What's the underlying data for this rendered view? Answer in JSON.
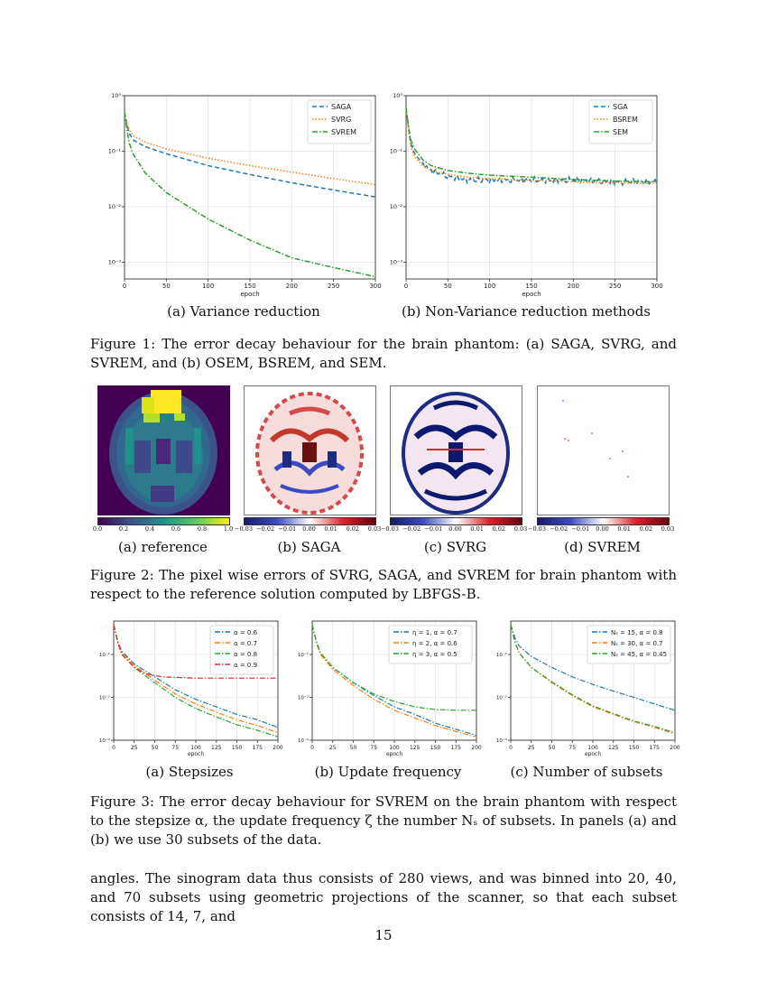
{
  "figure1": {
    "subcaption_a": "(a) Variance reduction",
    "subcaption_b": "(b) Non-Variance reduction methods",
    "caption": "Figure 1: The error decay behaviour for the brain phantom: (a) SAGA, SVRG, and SVREM, and (b) OSEM, BSREM, and SEM."
  },
  "figure2": {
    "subcaption_a": "(a) reference",
    "subcaption_b": "(b) SAGA",
    "subcaption_c": "(c) SVRG",
    "subcaption_d": "(d) SVREM",
    "colorbar_ref_ticks": [
      "0.0",
      "0.2",
      "0.4",
      "0.6",
      "0.8",
      "1.0"
    ],
    "colorbar_err_ticks": [
      "−0.03",
      "−0.02",
      "−0.01",
      "0.00",
      "0.01",
      "0.02",
      "0.03"
    ],
    "caption": "Figure 2: The pixel wise errors of SVRG, SAGA, and SVREM for brain phantom with respect to the reference solution computed by LBFGS-B."
  },
  "figure3": {
    "subcaption_a": "(a) Stepsizes",
    "subcaption_b": "(b) Update frequency",
    "subcaption_c": "(c) Number of subsets",
    "caption": "Figure 3: The error decay behaviour for SVREM on the brain phantom with respect to the stepsize α, the update frequency ζ the number Nₛ of subsets. In panels (a) and (b) we use 30 subsets of the data."
  },
  "body_text": "angles. The sinogram data thus consists of 280 views, and was binned into 20, 40, and 70 subsets using geometric projections of the scanner, so that each subset consists of 14, 7, and",
  "page_number": "15",
  "colors": {
    "blue": "#1f77b4",
    "orange": "#ff7f0e",
    "green": "#2ca02c",
    "red": "#d62728"
  },
  "chart_data": [
    {
      "id": "fig1a",
      "type": "line",
      "ylog": true,
      "xlabel": "epoch",
      "ylabel": "",
      "xlim": [
        0,
        300
      ],
      "ylim": [
        0.0005,
        1.0
      ],
      "xticks": [
        "0",
        "50",
        "100",
        "150",
        "200",
        "250",
        "300"
      ],
      "yticks": [
        "10⁰",
        "10⁻¹",
        "10⁻²",
        "10⁻³"
      ],
      "grid": true,
      "legend_position": "upper right",
      "series": [
        {
          "name": "SAGA",
          "style": "dashed",
          "color": "#1f77b4",
          "x": [
            0,
            5,
            10,
            25,
            50,
            100,
            150,
            200,
            250,
            300
          ],
          "y": [
            0.5,
            0.22,
            0.16,
            0.12,
            0.09,
            0.055,
            0.038,
            0.027,
            0.02,
            0.015
          ]
        },
        {
          "name": "SVRG",
          "style": "dotted",
          "color": "#ff7f0e",
          "x": [
            0,
            5,
            10,
            25,
            50,
            100,
            150,
            200,
            250,
            300
          ],
          "y": [
            0.5,
            0.25,
            0.19,
            0.145,
            0.11,
            0.075,
            0.055,
            0.042,
            0.032,
            0.025
          ]
        },
        {
          "name": "SVREM",
          "style": "dashdot",
          "color": "#2ca02c",
          "x": [
            0,
            5,
            10,
            25,
            50,
            100,
            150,
            200,
            250,
            300
          ],
          "y": [
            0.5,
            0.15,
            0.09,
            0.04,
            0.018,
            0.006,
            0.0025,
            0.0012,
            0.0008,
            0.00055
          ]
        }
      ]
    },
    {
      "id": "fig1b",
      "type": "line",
      "ylog": true,
      "xlabel": "epoch",
      "ylabel": "",
      "xlim": [
        0,
        300
      ],
      "ylim": [
        0.0005,
        1.0
      ],
      "xticks": [
        "0",
        "50",
        "100",
        "150",
        "200",
        "250",
        "300"
      ],
      "yticks": [
        "10⁰",
        "10⁻¹",
        "10⁻²",
        "10⁻³"
      ],
      "grid": true,
      "legend_position": "upper right",
      "series": [
        {
          "name": "SGA",
          "style": "dashed",
          "color": "#1f77b4",
          "noisy": true,
          "x": [
            0,
            5,
            10,
            20,
            30,
            50,
            75,
            100,
            150,
            200,
            250,
            300
          ],
          "y": [
            0.6,
            0.15,
            0.09,
            0.06,
            0.045,
            0.035,
            0.03,
            0.03,
            0.03,
            0.03,
            0.028,
            0.028
          ]
        },
        {
          "name": "BSREM",
          "style": "dotted",
          "color": "#ff7f0e",
          "x": [
            0,
            5,
            10,
            20,
            30,
            50,
            75,
            100,
            150,
            200,
            250,
            300
          ],
          "y": [
            0.6,
            0.13,
            0.08,
            0.055,
            0.045,
            0.038,
            0.034,
            0.032,
            0.03,
            0.028,
            0.027,
            0.026
          ]
        },
        {
          "name": "SEM",
          "style": "dashdot",
          "color": "#2ca02c",
          "x": [
            0,
            5,
            10,
            20,
            30,
            50,
            75,
            100,
            150,
            200,
            250,
            300
          ],
          "y": [
            0.6,
            0.17,
            0.11,
            0.07,
            0.055,
            0.045,
            0.04,
            0.037,
            0.034,
            0.031,
            0.029,
            0.028
          ]
        }
      ]
    },
    {
      "id": "fig3a",
      "type": "line",
      "ylog": true,
      "xlabel": "epoch",
      "ylabel": "",
      "xlim": [
        0,
        200
      ],
      "ylim": [
        0.001,
        0.6
      ],
      "xticks": [
        "0",
        "25",
        "50",
        "75",
        "100",
        "125",
        "150",
        "175",
        "200"
      ],
      "yticks": [
        "10⁻¹",
        "10⁻²",
        "10⁻³"
      ],
      "grid": true,
      "legend_position": "upper right",
      "series": [
        {
          "name": "α = 0.6",
          "style": "dashdot",
          "color": "#1f77b4",
          "x": [
            0,
            5,
            10,
            25,
            50,
            75,
            100,
            125,
            150,
            175,
            200
          ],
          "y": [
            0.5,
            0.2,
            0.12,
            0.06,
            0.03,
            0.015,
            0.009,
            0.006,
            0.004,
            0.003,
            0.002
          ]
        },
        {
          "name": "α = 0.7",
          "style": "dashdot",
          "color": "#ff7f0e",
          "x": [
            0,
            5,
            10,
            25,
            50,
            75,
            100,
            125,
            150,
            175,
            200
          ],
          "y": [
            0.5,
            0.2,
            0.11,
            0.055,
            0.025,
            0.012,
            0.007,
            0.0045,
            0.003,
            0.0022,
            0.0015
          ]
        },
        {
          "name": "α = 0.8",
          "style": "dashdot",
          "color": "#2ca02c",
          "x": [
            0,
            5,
            10,
            25,
            50,
            75,
            100,
            125,
            150,
            175,
            200
          ],
          "y": [
            0.5,
            0.19,
            0.1,
            0.05,
            0.022,
            0.01,
            0.0055,
            0.0035,
            0.0023,
            0.0017,
            0.0012
          ]
        },
        {
          "name": "α = 0.9",
          "style": "dashdot",
          "color": "#d62728",
          "x": [
            0,
            5,
            10,
            25,
            40,
            60,
            80,
            100,
            150,
            200
          ],
          "y": [
            0.5,
            0.19,
            0.1,
            0.05,
            0.035,
            0.03,
            0.029,
            0.028,
            0.028,
            0.028
          ]
        }
      ]
    },
    {
      "id": "fig3b",
      "type": "line",
      "ylog": true,
      "xlabel": "epoch",
      "ylabel": "",
      "xlim": [
        0,
        200
      ],
      "ylim": [
        0.001,
        0.6
      ],
      "xticks": [
        "0",
        "25",
        "50",
        "75",
        "100",
        "125",
        "150",
        "175",
        "200"
      ],
      "yticks": [
        "10⁻¹",
        "10⁻²",
        "10⁻³"
      ],
      "grid": true,
      "legend_position": "upper right",
      "series": [
        {
          "name": "η = 1, α = 0.7",
          "style": "dashdot",
          "color": "#1f77b4",
          "x": [
            0,
            5,
            10,
            25,
            50,
            75,
            100,
            125,
            150,
            175,
            200
          ],
          "y": [
            0.5,
            0.2,
            0.11,
            0.05,
            0.022,
            0.011,
            0.006,
            0.004,
            0.0025,
            0.0018,
            0.0013
          ]
        },
        {
          "name": "η = 2, α = 0.6",
          "style": "dashdot",
          "color": "#ff7f0e",
          "x": [
            0,
            5,
            10,
            25,
            50,
            75,
            100,
            125,
            150,
            175,
            200
          ],
          "y": [
            0.5,
            0.19,
            0.1,
            0.045,
            0.019,
            0.009,
            0.005,
            0.0033,
            0.0022,
            0.0016,
            0.0012
          ]
        },
        {
          "name": "η = 3, α = 0.5",
          "style": "dashdot",
          "color": "#2ca02c",
          "x": [
            0,
            5,
            10,
            25,
            50,
            75,
            100,
            125,
            150,
            175,
            200
          ],
          "y": [
            0.5,
            0.2,
            0.11,
            0.05,
            0.022,
            0.012,
            0.008,
            0.006,
            0.0052,
            0.005,
            0.005
          ]
        }
      ]
    },
    {
      "id": "fig3c",
      "type": "line",
      "ylog": true,
      "xlabel": "epoch",
      "ylabel": "",
      "xlim": [
        0,
        200
      ],
      "ylim": [
        0.001,
        0.6
      ],
      "xticks": [
        "0",
        "25",
        "50",
        "75",
        "100",
        "125",
        "150",
        "175",
        "200"
      ],
      "yticks": [
        "10⁻¹",
        "10⁻²",
        "10⁻³"
      ],
      "grid": true,
      "legend_position": "upper right",
      "series": [
        {
          "name": "Nₛ = 15, α = 0.8",
          "style": "dashdot",
          "color": "#1f77b4",
          "x": [
            0,
            5,
            10,
            25,
            50,
            75,
            100,
            125,
            150,
            175,
            200
          ],
          "y": [
            0.5,
            0.25,
            0.16,
            0.09,
            0.05,
            0.03,
            0.02,
            0.014,
            0.01,
            0.007,
            0.005
          ]
        },
        {
          "name": "Nₛ = 30, α = 0.7",
          "style": "dashdot",
          "color": "#ff7f0e",
          "x": [
            0,
            5,
            10,
            25,
            50,
            75,
            100,
            125,
            150,
            175,
            200
          ],
          "y": [
            0.5,
            0.2,
            0.11,
            0.05,
            0.022,
            0.011,
            0.006,
            0.004,
            0.0027,
            0.002,
            0.0014
          ]
        },
        {
          "name": "Nₛ = 45, α = 0.45",
          "style": "dashdot",
          "color": "#2ca02c",
          "x": [
            0,
            5,
            10,
            25,
            50,
            75,
            100,
            125,
            150,
            175,
            200
          ],
          "y": [
            0.5,
            0.2,
            0.11,
            0.05,
            0.023,
            0.0115,
            0.0063,
            0.0042,
            0.0028,
            0.0021,
            0.0015
          ]
        }
      ]
    }
  ]
}
